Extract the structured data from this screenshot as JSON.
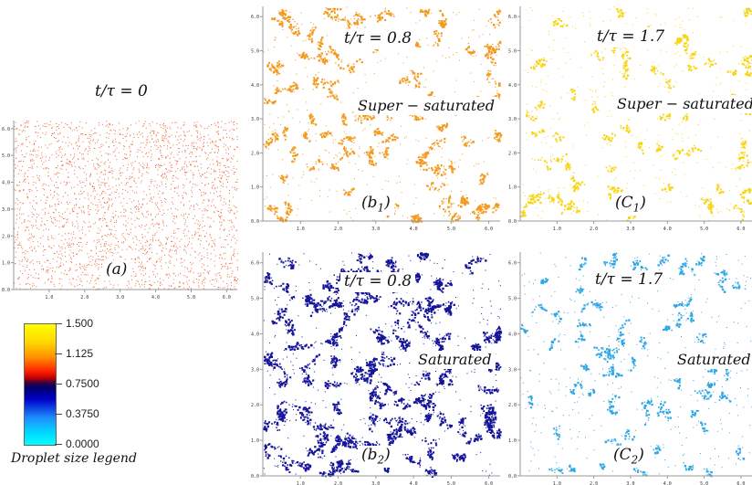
{
  "panels": [
    {
      "id": "a",
      "time_label": "t/τ = 0",
      "state": "",
      "letter": "a",
      "sub": "",
      "show_sub": false,
      "color": "#ee6a3c",
      "density": "uniform",
      "seed": 11
    },
    {
      "id": "b1",
      "time_label": "t/τ = 0.8",
      "state": "Super − saturated",
      "letter": "b",
      "sub": "1",
      "show_sub": true,
      "color": "#f39a1f",
      "density": "clustered",
      "seed": 23
    },
    {
      "id": "c1",
      "time_label": "t/τ = 1.7",
      "state": "Super − saturated",
      "letter": "C",
      "sub": "1",
      "show_sub": true,
      "color": "#f7d515",
      "density": "clustered-sparse",
      "seed": 37
    },
    {
      "id": "b2",
      "time_label": "t/τ = 0.8",
      "state": "Saturated",
      "letter": "b",
      "sub": "2",
      "show_sub": true,
      "color": "#15149a",
      "density": "clustered-dense",
      "seed": 41
    },
    {
      "id": "c2",
      "time_label": "t/τ = 1.7",
      "state": "Saturated",
      "letter": "C",
      "sub": "2",
      "show_sub": true,
      "color": "#2fa7e6",
      "density": "clustered-sparse",
      "seed": 53
    }
  ],
  "axis": {
    "x_ticks": [
      "1.0",
      "2.0",
      "3.0",
      "4.0",
      "5.0",
      "6.0"
    ],
    "y_ticks": [
      "0.0",
      "1.0",
      "2.0",
      "3.0",
      "4.0",
      "5.0",
      "6.0"
    ],
    "range": [
      0,
      6.3
    ]
  },
  "legend": {
    "values": [
      "1.500",
      "1.125",
      "0.7500",
      "0.3750",
      "0.0000"
    ],
    "title": "Droplet size legend"
  }
}
